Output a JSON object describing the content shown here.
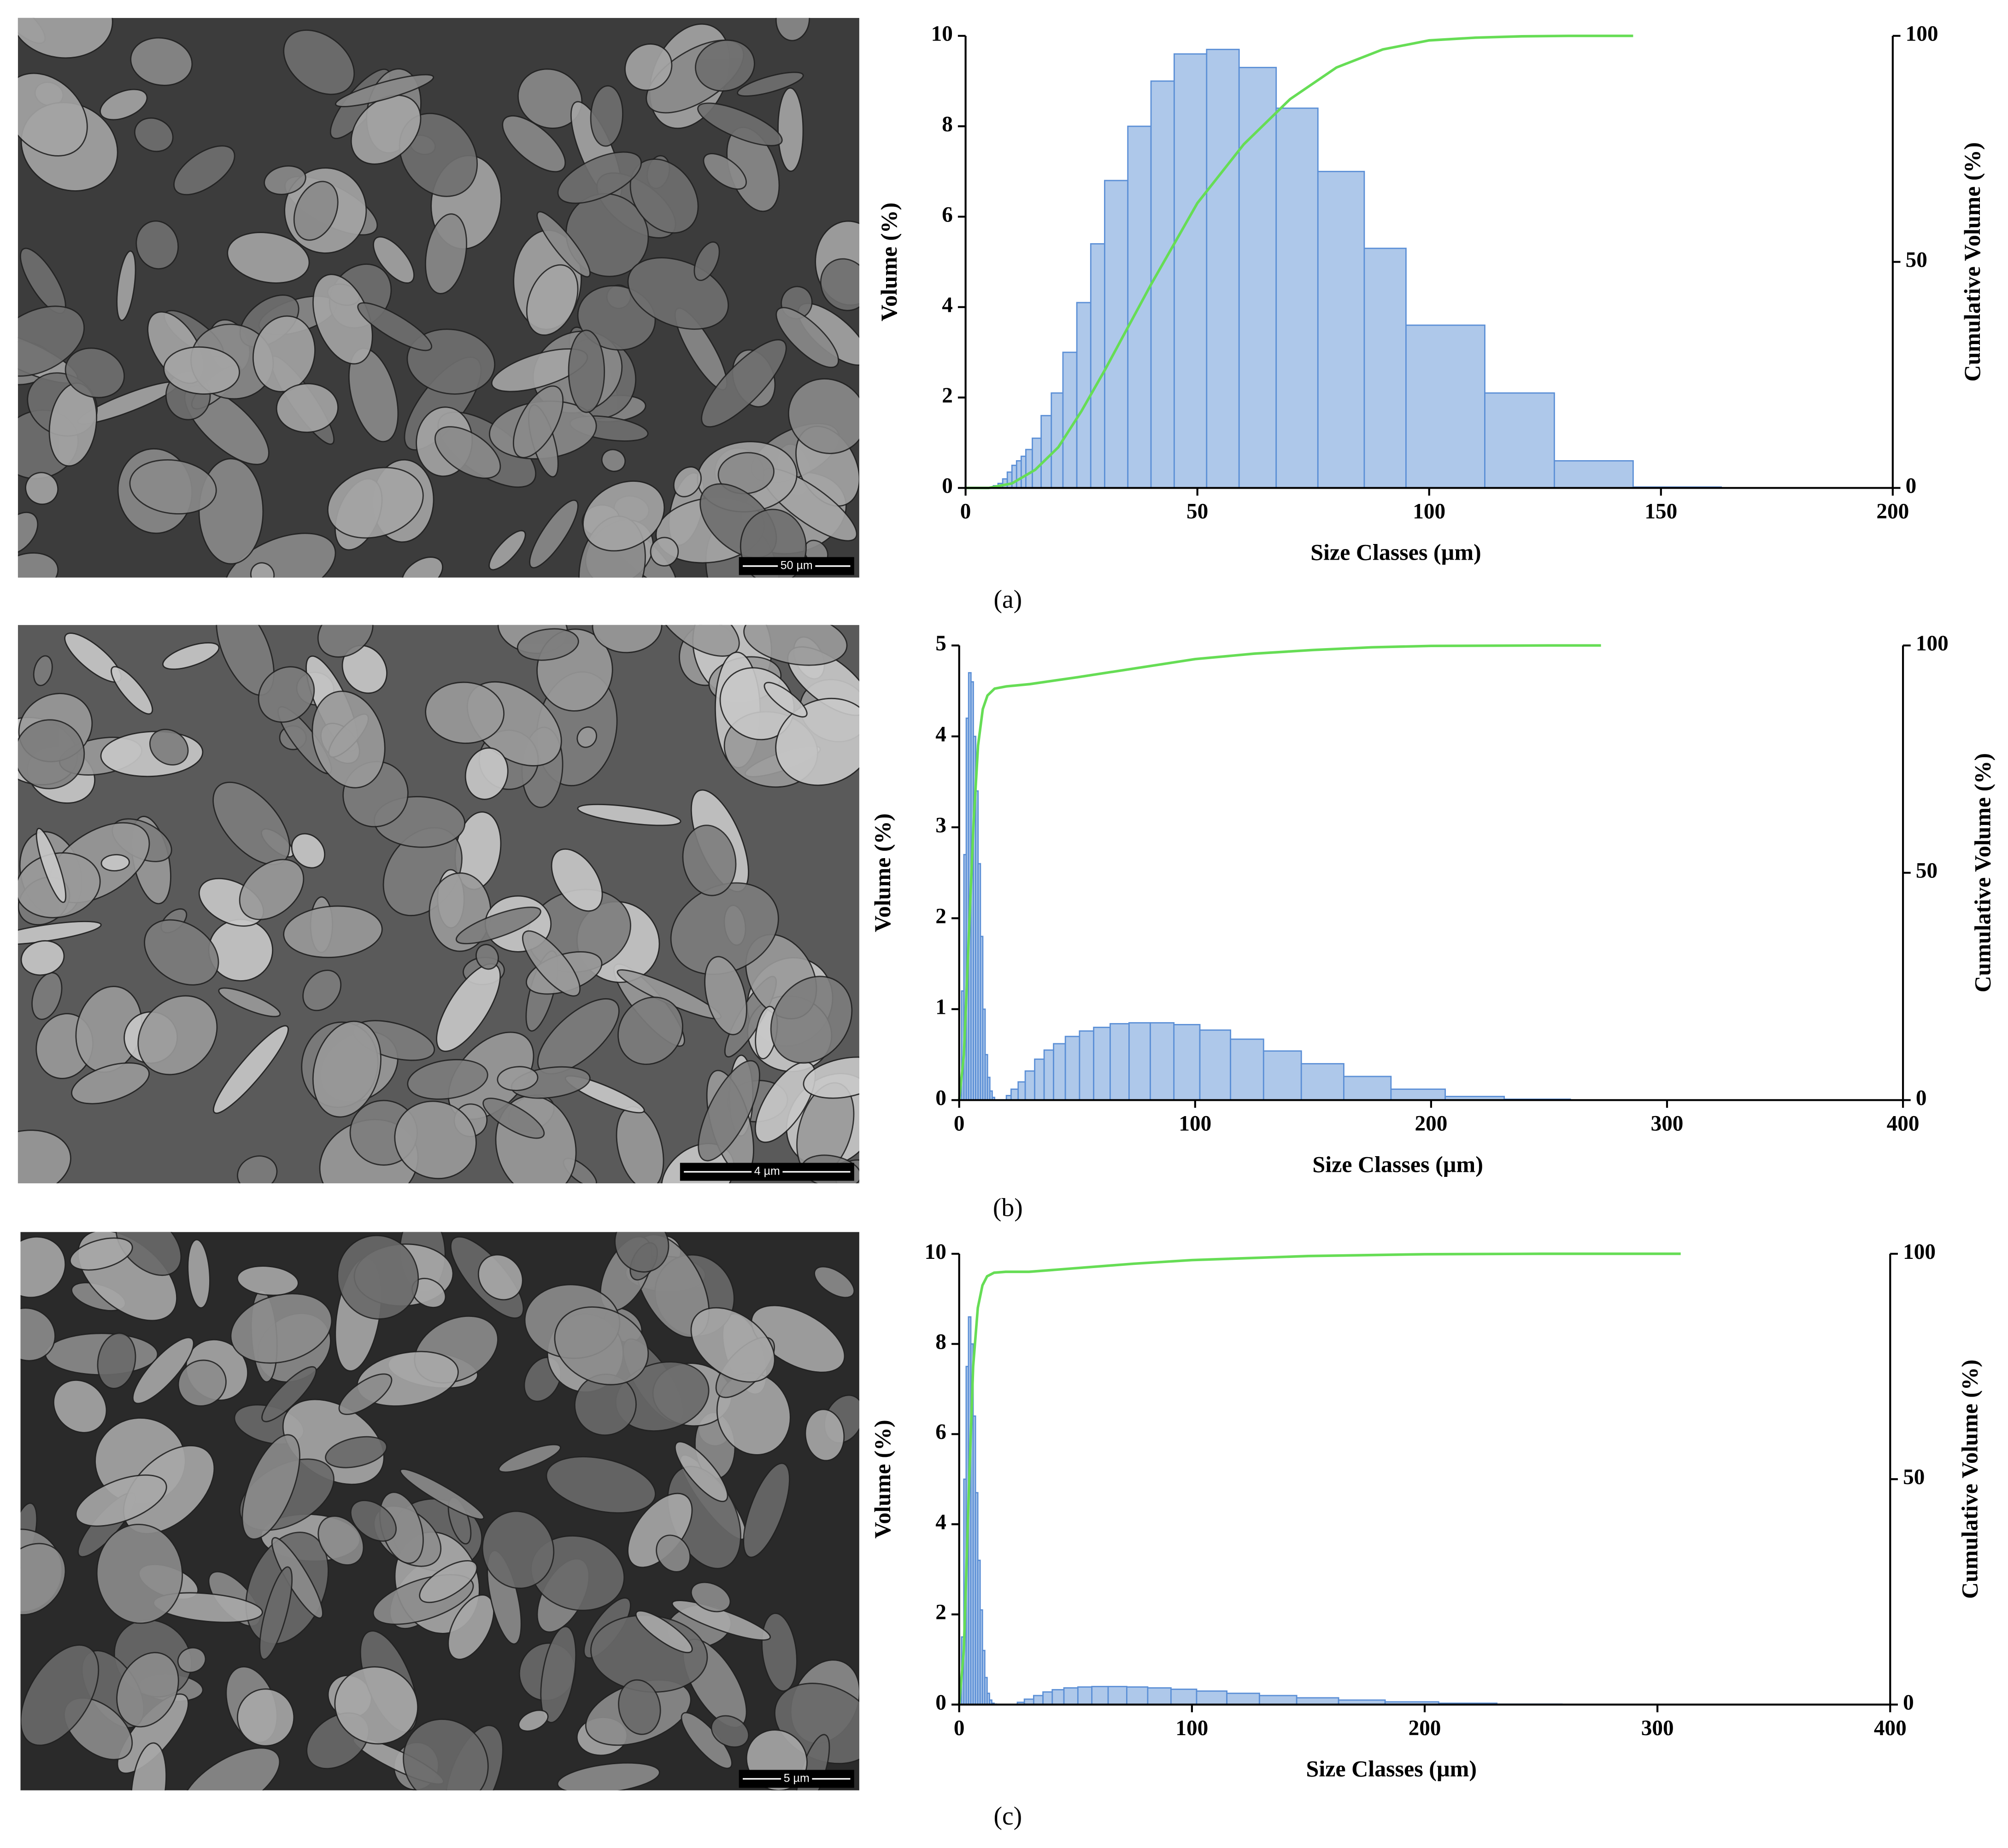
{
  "panel_labels": [
    "(a)",
    "(b)",
    "(c)"
  ],
  "images": [
    {
      "scale_bar": "50 µm"
    },
    {
      "scale_bar": "4 µm"
    },
    {
      "scale_bar": "5 µm"
    }
  ],
  "chart_data": [
    {
      "type": "histogram",
      "x_label": "Size Classes (µm)",
      "y_label": "Volume (%)",
      "y2_label": "Cumulative Volume (%)",
      "xlim": [
        0,
        200
      ],
      "xticks": [
        0,
        50,
        100,
        150,
        200
      ],
      "ylim": [
        0,
        10
      ],
      "yticks": [
        0,
        2,
        4,
        6,
        8,
        10
      ],
      "y2lim": [
        0,
        100
      ],
      "y2ticks": [
        0,
        50,
        100
      ],
      "bins": [
        6,
        7,
        8,
        9,
        10,
        11,
        12,
        13,
        14.4,
        16.3,
        18.5,
        21,
        24,
        27,
        30,
        35,
        40,
        45,
        52,
        59,
        67,
        76,
        86,
        95,
        112,
        127,
        144,
        163
      ],
      "values": [
        0.05,
        0.1,
        0.2,
        0.35,
        0.5,
        0.6,
        0.7,
        0.85,
        1.1,
        1.6,
        2.1,
        3.0,
        4.1,
        5.4,
        6.8,
        8.0,
        9.0,
        9.6,
        9.7,
        9.3,
        8.4,
        7.0,
        5.3,
        3.6,
        2.1,
        0.6,
        0.02
      ],
      "color": "#aec8ea",
      "edge_color": "#5b8fd6",
      "cumulative": {
        "axis": "y2",
        "color": "#66dd55",
        "x": [
          0,
          5,
          10,
          15,
          20,
          25,
          30,
          40,
          50,
          60,
          70,
          80,
          90,
          100,
          110,
          120,
          130,
          144
        ],
        "values": [
          0,
          0,
          1,
          4,
          9,
          17,
          26,
          45,
          63,
          76,
          86,
          93,
          97,
          99,
          99.6,
          99.9,
          100,
          100
        ]
      }
    },
    {
      "type": "histogram",
      "x_label": "Size Classes (µm)",
      "y_label": "Volume (%)",
      "y2_label": "Cumulative Volume (%)",
      "xlim": [
        0,
        400
      ],
      "xticks": [
        0,
        100,
        200,
        300,
        400
      ],
      "ylim": [
        0,
        5
      ],
      "yticks": [
        0,
        1,
        2,
        3,
        4,
        5
      ],
      "y2lim": [
        0,
        100
      ],
      "y2ticks": [
        0,
        50,
        100
      ],
      "bins": [
        1,
        2,
        3,
        4,
        5,
        6,
        7,
        8,
        9,
        10,
        11,
        12,
        13,
        14,
        15,
        20,
        22,
        25,
        28,
        32,
        36,
        40,
        45,
        51,
        57,
        64,
        72,
        81,
        91,
        102,
        115,
        129,
        145,
        163,
        183,
        206,
        231,
        259
      ],
      "values": [
        1.2,
        2.7,
        4.2,
        4.7,
        4.6,
        4.0,
        3.4,
        2.6,
        1.8,
        1.0,
        0.5,
        0.25,
        0.1,
        0.03,
        0,
        0.05,
        0.12,
        0.2,
        0.32,
        0.45,
        0.55,
        0.62,
        0.7,
        0.76,
        0.8,
        0.84,
        0.85,
        0.85,
        0.83,
        0.77,
        0.67,
        0.54,
        0.4,
        0.26,
        0.12,
        0.04,
        0.01
      ],
      "color": "#aec8ea",
      "edge_color": "#5b8fd6",
      "cumulative": {
        "axis": "y2",
        "color": "#66dd55",
        "x": [
          0,
          2,
          4,
          6,
          8,
          10,
          12,
          15,
          20,
          30,
          50,
          75,
          100,
          125,
          150,
          175,
          200,
          250,
          272
        ],
        "values": [
          0,
          10,
          35,
          60,
          78,
          86,
          89,
          90.5,
          91,
          91.5,
          93,
          95,
          97,
          98.2,
          99,
          99.6,
          99.9,
          100,
          100
        ]
      }
    },
    {
      "type": "histogram",
      "x_label": "Size Classes (µm)",
      "y_label": "Volume (%)",
      "y2_label": "Cumulative Volume (%)",
      "xlim": [
        0,
        400
      ],
      "xticks": [
        0,
        100,
        200,
        300,
        400
      ],
      "ylim": [
        0,
        10
      ],
      "yticks": [
        0,
        2,
        4,
        6,
        8,
        10
      ],
      "y2lim": [
        0,
        100
      ],
      "y2ticks": [
        0,
        50,
        100
      ],
      "bins": [
        1,
        2,
        3,
        4,
        5,
        6,
        7,
        8,
        9,
        10,
        11,
        12,
        13,
        14,
        15,
        16,
        25,
        28,
        32,
        36,
        40,
        45,
        51,
        57,
        64,
        72,
        81,
        91,
        102,
        115,
        129,
        145,
        163,
        183,
        206,
        231,
        259,
        291,
        350
      ],
      "values": [
        1.5,
        5.0,
        7.5,
        8.6,
        8.0,
        6.4,
        4.7,
        3.2,
        2.1,
        1.2,
        0.6,
        0.25,
        0.1,
        0.03,
        0.01,
        0,
        0.05,
        0.12,
        0.2,
        0.28,
        0.33,
        0.37,
        0.39,
        0.4,
        0.4,
        0.39,
        0.37,
        0.34,
        0.3,
        0.25,
        0.2,
        0.15,
        0.1,
        0.06,
        0.03,
        0.01,
        0.005,
        0.002
      ],
      "color": "#aec8ea",
      "edge_color": "#5b8fd6",
      "cumulative": {
        "axis": "y2",
        "color": "#66dd55",
        "x": [
          0,
          2,
          4,
          6,
          8,
          10,
          12,
          15,
          20,
          30,
          50,
          75,
          100,
          150,
          200,
          250,
          310
        ],
        "values": [
          0,
          12,
          45,
          75,
          88,
          93,
          95,
          95.8,
          96,
          96,
          96.8,
          97.8,
          98.6,
          99.5,
          99.9,
          100,
          100
        ]
      }
    }
  ]
}
